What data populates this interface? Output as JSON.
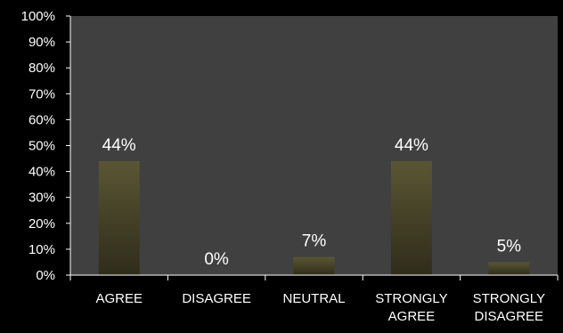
{
  "chart_data": {
    "type": "bar",
    "categories": [
      [
        "AGREE"
      ],
      [
        "DISAGREE"
      ],
      [
        "NEUTRAL"
      ],
      [
        "STRONGLY",
        "AGREE"
      ],
      [
        "STRONGLY",
        "DISAGREE"
      ]
    ],
    "values": [
      44,
      0,
      7,
      44,
      5
    ],
    "data_labels": [
      "44%",
      "0%",
      "7%",
      "44%",
      "5%"
    ],
    "ylim": [
      0,
      100
    ],
    "yticks": [
      "0%",
      "10%",
      "20%",
      "30%",
      "40%",
      "50%",
      "60%",
      "70%",
      "80%",
      "90%",
      "100%"
    ],
    "grid": false,
    "legend": "none"
  },
  "colors": {
    "background": "#000000",
    "plot_area": "#404040",
    "bar_top": "#5a5634",
    "bar_bottom": "#2f2c1a",
    "axis": "#ffffff"
  }
}
